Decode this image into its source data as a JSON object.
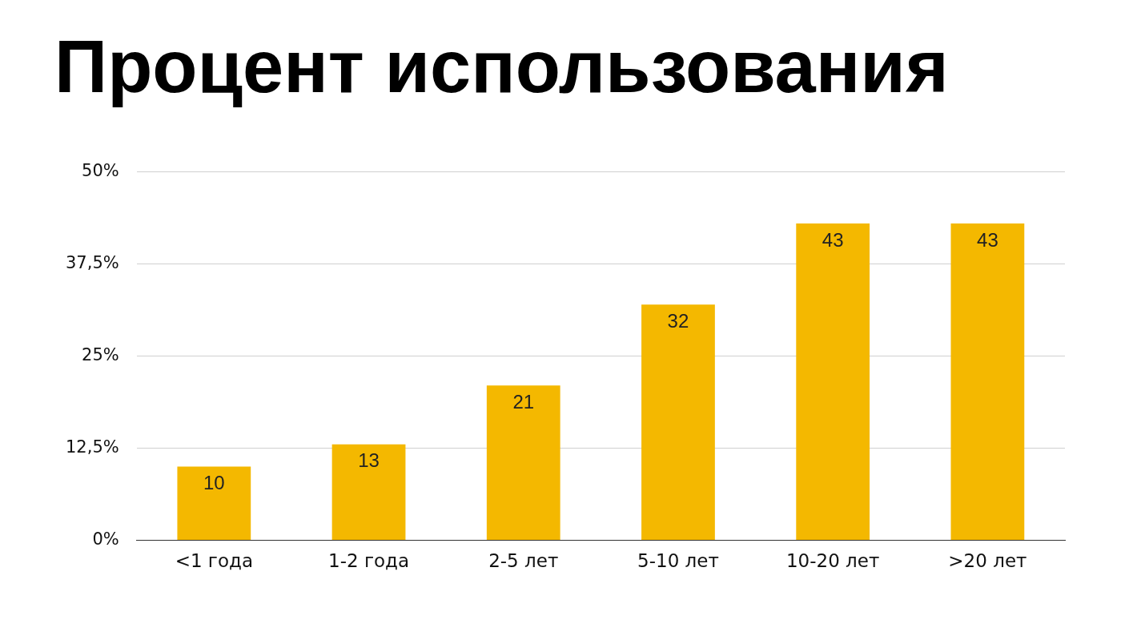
{
  "chart_data": {
    "type": "bar",
    "title": "Процент использования",
    "categories": [
      "<1 года",
      "1-2 года",
      "2-5 лет",
      "5-10 лет",
      "10-20 лет",
      ">20 лет"
    ],
    "values": [
      10,
      13,
      21,
      32,
      43,
      43
    ],
    "color": "#f4b800",
    "ylim": [
      0,
      50
    ],
    "yticks": [
      {
        "value": 0,
        "label": "0%"
      },
      {
        "value": 12.5,
        "label": "12,5%"
      },
      {
        "value": 25,
        "label": "25%"
      },
      {
        "value": 37.5,
        "label": "37,5%"
      },
      {
        "value": 50,
        "label": "50%"
      }
    ],
    "grid": "y",
    "legend": false,
    "data_labels": true
  }
}
